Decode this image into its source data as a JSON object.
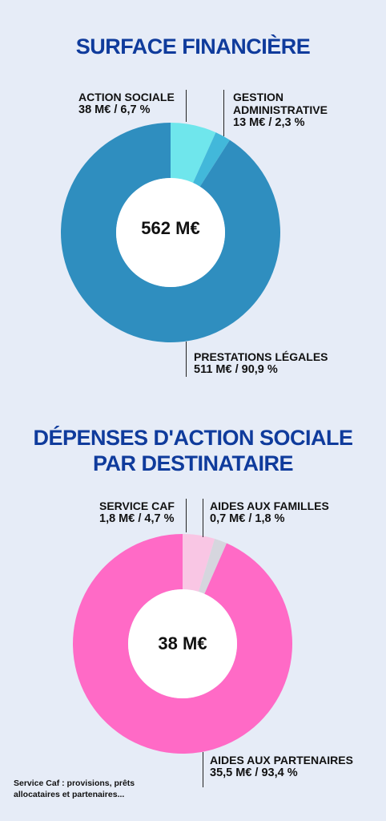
{
  "chart_data": [
    {
      "type": "pie",
      "title": "SURFACE FINANCIÈRE",
      "center_label": "562 M€",
      "slices": [
        {
          "name": "ACTION SOCIALE",
          "value_label": "38 M€ / 6,7 %",
          "value": 38,
          "percent": 6.7,
          "color": "#6fe6ec"
        },
        {
          "name": "GESTION ADMINISTRATIVE",
          "name_lines": [
            "GESTION",
            "ADMINISTRATIVE"
          ],
          "value_label": "13 M€ / 2,3 %",
          "value": 13,
          "percent": 2.3,
          "color": "#42b8da"
        },
        {
          "name": "PRESTATIONS LÉGALES",
          "value_label": "511 M€ / 90,9 %",
          "value": 511,
          "percent": 90.9,
          "color": "#2f8ebf"
        }
      ]
    },
    {
      "type": "pie",
      "title": "DÉPENSES D'ACTION SOCIALE PAR DESTINATAIRE",
      "title_lines": [
        "DÉPENSES D'ACTION SOCIALE",
        "PAR DESTINATAIRE"
      ],
      "center_label": "38 M€",
      "slices": [
        {
          "name": "SERVICE CAF",
          "value_label": "1,8 M€ / 4,7 %",
          "value": 1.8,
          "percent": 4.7,
          "color": "#f9c6e4"
        },
        {
          "name": "AIDES AUX FAMILLES",
          "value_label": "0,7 M€ / 1,8 %",
          "value": 0.7,
          "percent": 1.8,
          "color": "#d6d6de"
        },
        {
          "name": "AIDES AUX PARTENAIRES",
          "value_label": "35,5 M€ / 93,4 %",
          "value": 35.5,
          "percent": 93.4,
          "color": "#ff6ac6"
        }
      ]
    }
  ],
  "footnote_lines": [
    "Service Caf : provisions, prêts",
    "allocataires et partenaires..."
  ]
}
